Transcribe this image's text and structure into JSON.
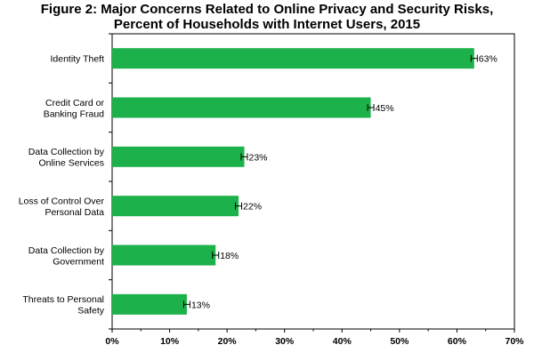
{
  "chart_data": {
    "type": "bar",
    "orientation": "horizontal",
    "title_line1": "Figure 2: Major Concerns Related to Online Privacy and Security Risks,",
    "title_line2": "Percent of Households with Internet Users, 2015",
    "categories": [
      [
        "Identity Theft"
      ],
      [
        "Credit Card or",
        "Banking Fraud"
      ],
      [
        "Data Collection by",
        "Online Services"
      ],
      [
        "Loss of Control Over",
        "Personal Data"
      ],
      [
        "Data Collection by",
        "Government"
      ],
      [
        "Threats to Personal",
        "Safety"
      ]
    ],
    "values": [
      63,
      45,
      23,
      22,
      18,
      13
    ],
    "value_labels": [
      "63%",
      "45%",
      "23%",
      "22%",
      "18%",
      "13%"
    ],
    "error_bars": true,
    "xlim": [
      0,
      70
    ],
    "x_ticks": [
      0,
      10,
      20,
      30,
      40,
      50,
      60,
      70
    ],
    "x_tick_labels": [
      "0%",
      "10%",
      "20%",
      "30%",
      "40%",
      "50%",
      "60%",
      "70%"
    ],
    "bar_color": "#1db14b",
    "grid": false,
    "xlabel": "",
    "ylabel": ""
  }
}
